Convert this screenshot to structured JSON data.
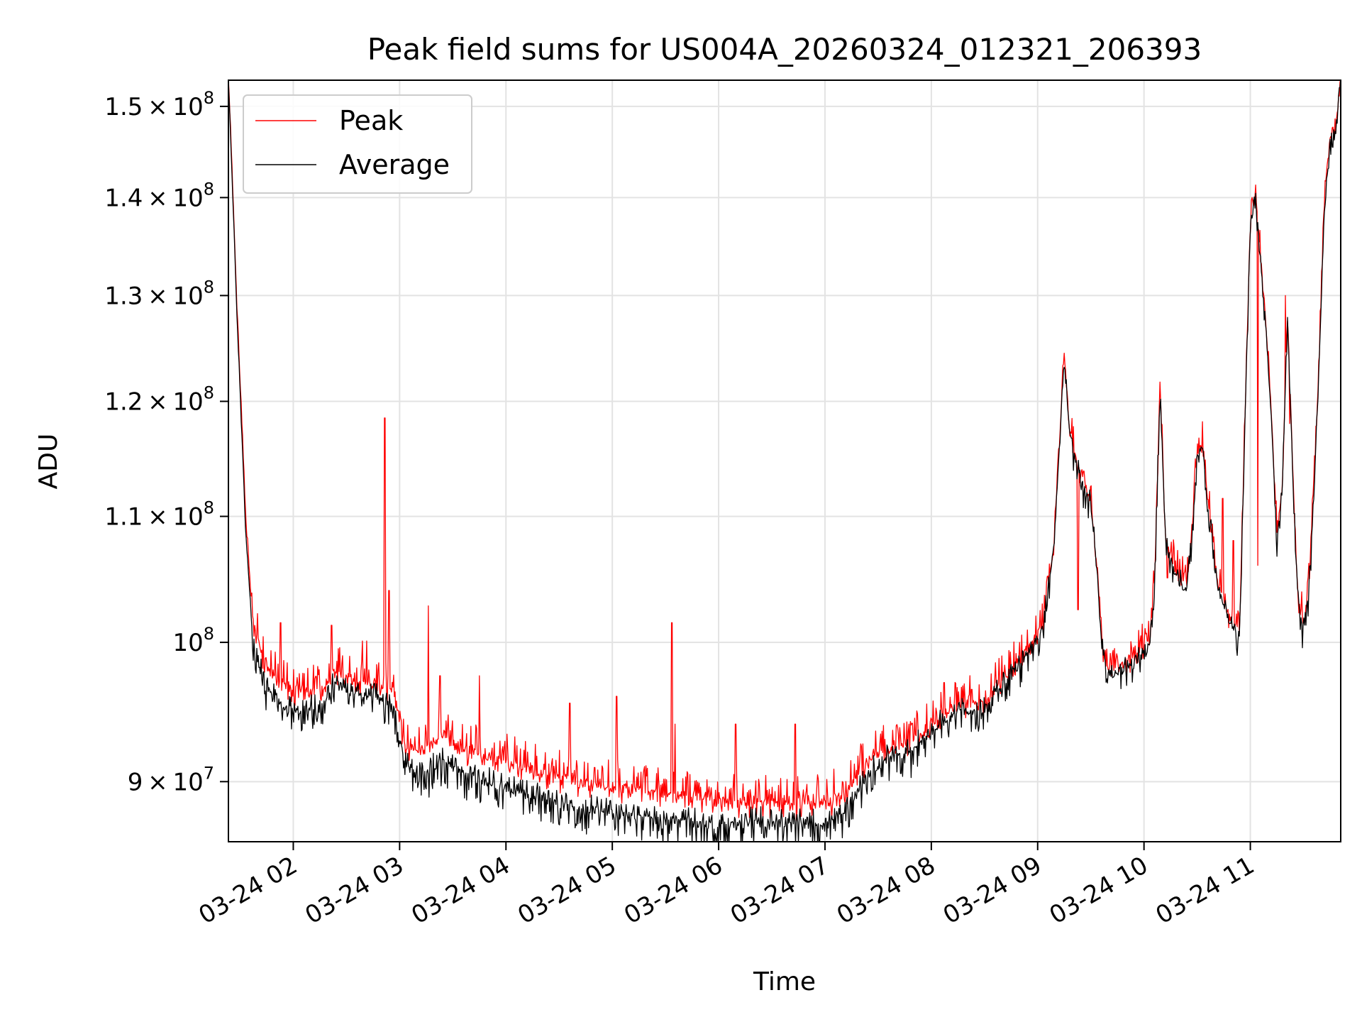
{
  "chart_data": {
    "type": "line",
    "title": "Peak field sums for US004A_20260324_012321_206393",
    "xlabel": "Time",
    "ylabel": "ADU",
    "scale_y": "log",
    "ylim": [
      86000000,
      153000000
    ],
    "xlim_hours": [
      1.39,
      11.85
    ],
    "grid": true,
    "legend_position": "upper-left",
    "x_ticks": [
      {
        "hour": 2,
        "label": "03-24 02"
      },
      {
        "hour": 3,
        "label": "03-24 03"
      },
      {
        "hour": 4,
        "label": "03-24 04"
      },
      {
        "hour": 5,
        "label": "03-24 05"
      },
      {
        "hour": 6,
        "label": "03-24 06"
      },
      {
        "hour": 7,
        "label": "03-24 07"
      },
      {
        "hour": 8,
        "label": "03-24 08"
      },
      {
        "hour": 9,
        "label": "03-24 09"
      },
      {
        "hour": 10,
        "label": "03-24 10"
      },
      {
        "hour": 11,
        "label": "03-24 11"
      }
    ],
    "y_ticks": [
      {
        "value": 90000000,
        "mant": "9",
        "exp": "7",
        "mant_only": false
      },
      {
        "value": 100000000,
        "mant": "",
        "exp": "8",
        "mant_only": true
      },
      {
        "value": 110000000,
        "mant": "1.1",
        "exp": "8",
        "mant_only": false
      },
      {
        "value": 120000000,
        "mant": "1.2",
        "exp": "8",
        "mant_only": false
      },
      {
        "value": 130000000,
        "mant": "1.3",
        "exp": "8",
        "mant_only": false
      },
      {
        "value": 140000000,
        "mant": "1.4",
        "exp": "8",
        "mant_only": false
      },
      {
        "value": 150000000,
        "mant": "1.5",
        "exp": "8",
        "mant_only": false
      }
    ],
    "tick_base": "10",
    "tick_times": "×",
    "series": [
      {
        "name": "Peak",
        "color": "#ff0000",
        "jitter_up": 1.8,
        "jitter_down": 0.9,
        "offset_profile": [
          [
            1.39,
            0.5
          ],
          [
            1.7,
            1.8
          ],
          [
            2.6,
            0.8
          ],
          [
            3.3,
            1.8
          ],
          [
            5.9,
            1.8
          ],
          [
            6.6,
            1.2
          ],
          [
            7.0,
            1.5
          ],
          [
            7.6,
            0.8
          ],
          [
            8.0,
            0.5
          ],
          [
            11.85,
            0.5
          ]
        ],
        "spikes": [
          [
            1.88,
            101.5
          ],
          [
            2.36,
            101.3
          ],
          [
            2.65,
            100.1
          ],
          [
            2.69,
            100.1
          ],
          [
            2.86,
            118.5
          ],
          [
            2.9,
            104.0
          ],
          [
            3.27,
            102.8
          ],
          [
            3.38,
            97.5
          ],
          [
            3.75,
            97.5
          ],
          [
            4.6,
            95.5
          ],
          [
            5.04,
            96.0
          ],
          [
            5.56,
            101.5
          ],
          [
            5.59,
            94.0
          ],
          [
            6.16,
            94.0
          ],
          [
            6.72,
            94.0
          ],
          [
            8.12,
            97.0
          ],
          [
            8.38,
            96.5
          ],
          [
            9.38,
            102.5
          ],
          [
            9.97,
            100.5
          ],
          [
            10.22,
            105.0
          ],
          [
            10.74,
            111.5
          ],
          [
            10.84,
            108.0
          ],
          [
            11.07,
            106.0
          ],
          [
            11.33,
            130.0
          ],
          [
            11.37,
            118.0
          ]
        ]
      },
      {
        "name": "Average",
        "color": "#000000",
        "jitter_up": 0.9,
        "jitter_down": 1.6,
        "offset_profile": [
          [
            1.39,
            0.0
          ],
          [
            1.7,
            0.0
          ],
          [
            11.85,
            0.0
          ]
        ],
        "spikes": []
      }
    ],
    "baseline": [
      [
        1.39,
        153.0
      ],
      [
        1.47,
        128.0
      ],
      [
        1.55,
        109.0
      ],
      [
        1.62,
        100.0
      ],
      [
        1.72,
        97.0
      ],
      [
        1.85,
        95.5
      ],
      [
        2.0,
        95.0
      ],
      [
        2.15,
        95.0
      ],
      [
        2.3,
        95.5
      ],
      [
        2.38,
        97.0
      ],
      [
        2.5,
        96.5
      ],
      [
        2.6,
        96.0
      ],
      [
        2.8,
        96.0
      ],
      [
        2.95,
        95.0
      ],
      [
        3.0,
        93.0
      ],
      [
        3.05,
        91.0
      ],
      [
        3.25,
        90.5
      ],
      [
        3.4,
        91.5
      ],
      [
        3.5,
        91.0
      ],
      [
        3.6,
        90.5
      ],
      [
        4.0,
        89.5
      ],
      [
        4.5,
        88.5
      ],
      [
        5.0,
        87.8
      ],
      [
        5.5,
        87.4
      ],
      [
        6.0,
        87.0
      ],
      [
        6.5,
        87.3
      ],
      [
        7.0,
        87.0
      ],
      [
        7.2,
        88.0
      ],
      [
        7.4,
        90.5
      ],
      [
        7.6,
        91.5
      ],
      [
        7.8,
        92.0
      ],
      [
        8.0,
        93.5
      ],
      [
        8.25,
        95.0
      ],
      [
        8.5,
        95.0
      ],
      [
        8.7,
        97.0
      ],
      [
        8.85,
        98.5
      ],
      [
        8.95,
        99.5
      ],
      [
        9.05,
        101.0
      ],
      [
        9.15,
        107.0
      ],
      [
        9.2,
        115.0
      ],
      [
        9.25,
        124.0
      ],
      [
        9.3,
        117.0
      ],
      [
        9.4,
        113.0
      ],
      [
        9.5,
        111.0
      ],
      [
        9.55,
        106.0
      ],
      [
        9.6,
        100.0
      ],
      [
        9.65,
        97.5
      ],
      [
        9.75,
        97.5
      ],
      [
        9.9,
        98.5
      ],
      [
        10.0,
        99.0
      ],
      [
        10.05,
        99.5
      ],
      [
        10.1,
        104.0
      ],
      [
        10.15,
        121.0
      ],
      [
        10.2,
        108.0
      ],
      [
        10.3,
        105.0
      ],
      [
        10.4,
        104.0
      ],
      [
        10.45,
        108.0
      ],
      [
        10.5,
        115.0
      ],
      [
        10.55,
        116.0
      ],
      [
        10.6,
        111.0
      ],
      [
        10.7,
        104.0
      ],
      [
        10.8,
        101.5
      ],
      [
        10.9,
        100.5
      ],
      [
        10.95,
        118.0
      ],
      [
        11.0,
        137.0
      ],
      [
        11.05,
        140.0
      ],
      [
        11.1,
        133.0
      ],
      [
        11.15,
        126.0
      ],
      [
        11.2,
        118.0
      ],
      [
        11.25,
        108.0
      ],
      [
        11.3,
        112.0
      ],
      [
        11.35,
        128.0
      ],
      [
        11.4,
        113.0
      ],
      [
        11.45,
        103.0
      ],
      [
        11.5,
        101.0
      ],
      [
        11.55,
        104.0
      ],
      [
        11.6,
        112.0
      ],
      [
        11.65,
        124.0
      ],
      [
        11.7,
        140.0
      ],
      [
        11.75,
        146.0
      ],
      [
        11.8,
        147.0
      ],
      [
        11.85,
        153.0
      ]
    ],
    "baseline_unit": "millions ADU",
    "samples_per_hour": 150
  }
}
